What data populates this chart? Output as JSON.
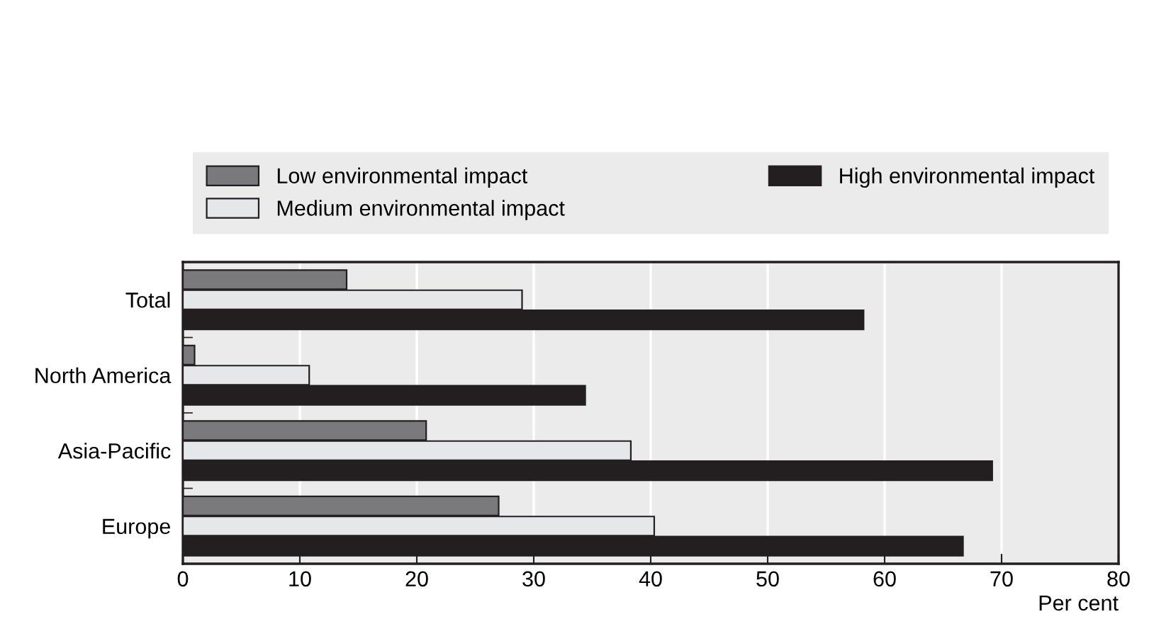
{
  "chart_data": {
    "type": "bar",
    "orientation": "horizontal",
    "xlabel": "Per cent",
    "categories": [
      "Total",
      "North America",
      "Asia-Pacific",
      "Europe"
    ],
    "series": [
      {
        "name": "Low environmental impact",
        "color": "#7a7a7c",
        "values": [
          14.0,
          1.0,
          20.8,
          27.0
        ]
      },
      {
        "name": "Medium environmental impact",
        "color": "#e6e7e8",
        "values": [
          29.0,
          10.8,
          38.3,
          40.3
        ]
      },
      {
        "name": "High environmental impact",
        "color": "#231f20",
        "values": [
          58.2,
          34.4,
          69.2,
          66.7
        ]
      }
    ],
    "xlim": [
      0,
      80
    ],
    "xticks": [
      0,
      10,
      20,
      30,
      40,
      50,
      60,
      70,
      80
    ],
    "grid": "x",
    "legend": "top"
  }
}
